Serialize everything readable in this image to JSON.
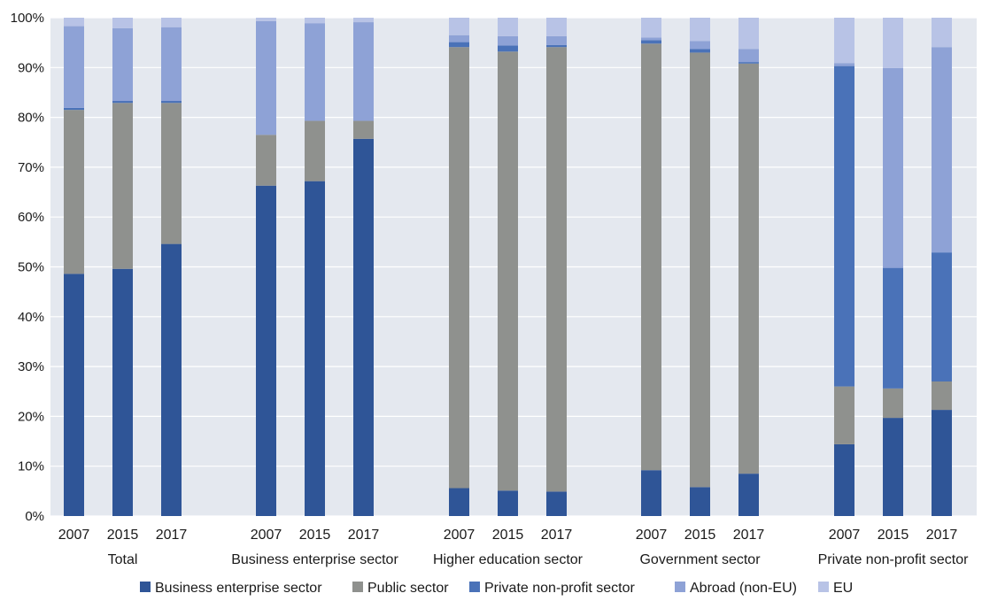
{
  "chart_data": {
    "type": "bar",
    "stacked": true,
    "y_axis": {
      "ylim": [
        0,
        100
      ],
      "ticks": [
        0,
        10,
        20,
        30,
        40,
        50,
        60,
        70,
        80,
        90,
        100
      ],
      "tick_labels": [
        "0%",
        "10%",
        "20%",
        "30%",
        "40%",
        "50%",
        "60%",
        "70%",
        "80%",
        "90%",
        "100%"
      ]
    },
    "grid": true,
    "legend_position": "bottom",
    "series": [
      {
        "name": "Business enterprise sector",
        "color": "#2f5597"
      },
      {
        "name": "Public sector",
        "color": "#8f918e"
      },
      {
        "name": "Private non-profit sector",
        "color": "#4a72b8"
      },
      {
        "name": "Abroad (non-EU)",
        "color": "#8ea2d6"
      },
      {
        "name": "EU",
        "color": "#b8c3e6"
      }
    ],
    "groups": [
      {
        "label": "Total",
        "bars": [
          {
            "year": "2007",
            "values": [
              48.6,
              32.9,
              0.4,
              16.4,
              1.7
            ]
          },
          {
            "year": "2015",
            "values": [
              49.6,
              33.3,
              0.4,
              14.6,
              2.1
            ]
          },
          {
            "year": "2017",
            "values": [
              54.6,
              28.3,
              0.4,
              14.8,
              1.9
            ]
          }
        ]
      },
      {
        "label": "Business enterprise sector",
        "bars": [
          {
            "year": "2007",
            "values": [
              66.3,
              10.2,
              0.0,
              22.8,
              0.7
            ]
          },
          {
            "year": "2015",
            "values": [
              67.2,
              12.1,
              0.0,
              19.6,
              1.1
            ]
          },
          {
            "year": "2017",
            "values": [
              75.7,
              3.6,
              0.0,
              19.8,
              0.9
            ]
          }
        ]
      },
      {
        "label": "Higher education sector",
        "bars": [
          {
            "year": "2007",
            "values": [
              5.6,
              88.5,
              1.0,
              1.4,
              3.5
            ]
          },
          {
            "year": "2015",
            "values": [
              5.1,
              88.1,
              1.2,
              1.9,
              3.7
            ]
          },
          {
            "year": "2017",
            "values": [
              4.9,
              89.2,
              0.4,
              1.8,
              3.7
            ]
          }
        ]
      },
      {
        "label": "Government sector",
        "bars": [
          {
            "year": "2007",
            "values": [
              9.2,
              85.6,
              0.7,
              0.5,
              4.0
            ]
          },
          {
            "year": "2015",
            "values": [
              5.8,
              87.2,
              0.7,
              1.6,
              4.7
            ]
          },
          {
            "year": "2017",
            "values": [
              8.5,
              82.3,
              0.3,
              2.6,
              6.3
            ]
          }
        ]
      },
      {
        "label": "Private non-profit sector",
        "bars": [
          {
            "year": "2007",
            "values": [
              14.4,
              11.6,
              64.3,
              0.6,
              9.1
            ]
          },
          {
            "year": "2015",
            "values": [
              19.7,
              5.9,
              24.2,
              40.1,
              10.1
            ]
          },
          {
            "year": "2017",
            "values": [
              21.3,
              5.7,
              25.9,
              41.2,
              5.9
            ]
          }
        ]
      }
    ]
  }
}
